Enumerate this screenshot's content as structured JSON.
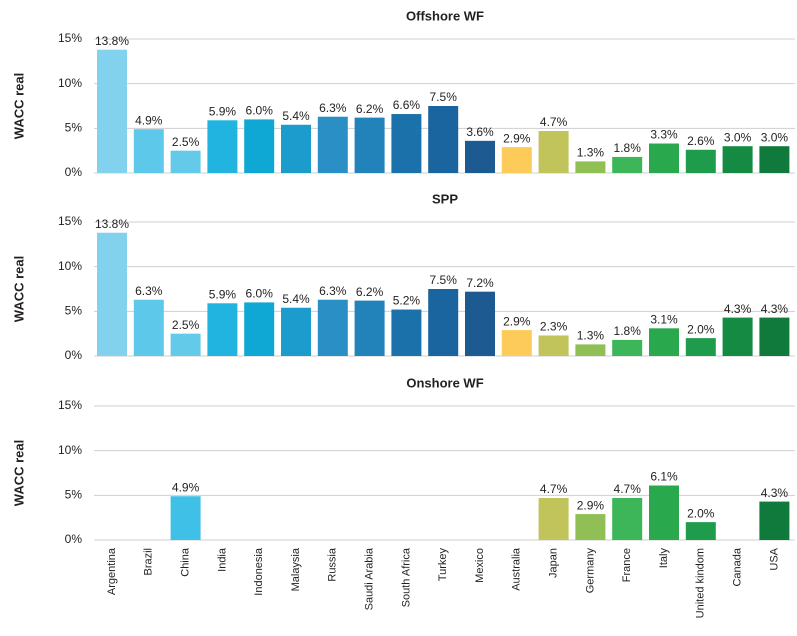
{
  "chart_data": [
    {
      "type": "bar",
      "title": "Offshore WF",
      "y_label": "WACC real",
      "values": [
        13.8,
        4.9,
        2.5,
        5.9,
        6.0,
        5.4,
        6.3,
        6.2,
        6.6,
        7.5,
        3.6,
        2.9,
        4.7,
        1.3,
        1.8,
        3.3,
        2.6,
        3.0,
        3.0
      ],
      "value_labels": [
        "13.8%",
        "4.9%",
        "2.5%",
        "5.9%",
        "6.0%",
        "5.4%",
        "6.3%",
        "6.2%",
        "6.6%",
        "7.5%",
        "3.6%",
        "2.9%",
        "4.7%",
        "1.3%",
        "1.8%",
        "3.3%",
        "2.6%",
        "3.0%",
        "3.0%"
      ],
      "colors": [
        "#82d2ee",
        "#5ec8ea",
        "#63cbe9",
        "#22b4e0",
        "#0fa8d4",
        "#1c9ccc",
        "#2a8fc4",
        "#2282ba",
        "#1b72aa",
        "#1a65a0",
        "#1c5a91",
        "#fdcb5a",
        "#c1c45a",
        "#8fbf55",
        "#3db659",
        "#2aa84d",
        "#1f9c4b",
        "#148a42",
        "#0f7a3c"
      ],
      "ylim": [
        0,
        15
      ],
      "yticks": [
        {
          "value": 0,
          "label": "0%"
        },
        {
          "value": 5,
          "label": "5%"
        },
        {
          "value": 10,
          "label": "10%"
        },
        {
          "value": 15,
          "label": "15%"
        }
      ],
      "grid": true
    },
    {
      "type": "bar",
      "title": "SPP",
      "y_label": "WACC real",
      "values": [
        13.8,
        6.3,
        2.5,
        5.9,
        6.0,
        5.4,
        6.3,
        6.2,
        5.2,
        7.5,
        7.2,
        2.9,
        2.3,
        1.3,
        1.8,
        3.1,
        2.0,
        4.3,
        4.3
      ],
      "value_labels": [
        "13.8%",
        "6.3%",
        "2.5%",
        "5.9%",
        "6.0%",
        "5.4%",
        "6.3%",
        "6.2%",
        "5.2%",
        "7.5%",
        "7.2%",
        "2.9%",
        "2.3%",
        "1.3%",
        "1.8%",
        "3.1%",
        "2.0%",
        "4.3%",
        "4.3%"
      ],
      "colors": [
        "#82d2ee",
        "#5ec8ea",
        "#63cbe9",
        "#22b4e0",
        "#0fa8d4",
        "#1c9ccc",
        "#2a8fc4",
        "#2282ba",
        "#1b72aa",
        "#1a65a0",
        "#1c5a91",
        "#fdcb5a",
        "#c1c45a",
        "#8fbf55",
        "#3db659",
        "#2aa84d",
        "#1f9c4b",
        "#148a42",
        "#0f7a3c"
      ],
      "ylim": [
        0,
        15
      ],
      "yticks": [
        {
          "value": 0,
          "label": "0%"
        },
        {
          "value": 5,
          "label": "5%"
        },
        {
          "value": 10,
          "label": "10%"
        },
        {
          "value": 15,
          "label": "15%"
        }
      ],
      "grid": true
    },
    {
      "type": "bar",
      "title": "Onshore WF",
      "y_label": "WACC real",
      "categories": [
        "Argentina",
        "Brazil",
        "China",
        "India",
        "Indonesia",
        "Malaysia",
        "Russia",
        "Saudi Arabia",
        "South Africa",
        "Turkey",
        "Mexico",
        "Australia",
        "Japan",
        "Germany",
        "France",
        "Italy",
        "United kindom",
        "Canada",
        "USA"
      ],
      "values": [
        null,
        null,
        4.9,
        null,
        null,
        null,
        null,
        null,
        null,
        null,
        null,
        null,
        4.7,
        2.9,
        4.7,
        6.1,
        2.0,
        null,
        4.3
      ],
      "value_labels": [
        null,
        null,
        "4.9%",
        null,
        null,
        null,
        null,
        null,
        null,
        null,
        null,
        null,
        "4.7%",
        "2.9%",
        "4.7%",
        "6.1%",
        "2.0%",
        null,
        "4.3%"
      ],
      "colors": [
        "#82d2ee",
        "#5ec8ea",
        "#3fc0e6",
        "#22b4e0",
        "#0fa8d4",
        "#1c9ccc",
        "#2a8fc4",
        "#2282ba",
        "#1b72aa",
        "#1a65a0",
        "#1c5a91",
        "#fdcb5a",
        "#c1c45a",
        "#8fbf55",
        "#3db659",
        "#2aa84d",
        "#1f9c4b",
        "#148a42",
        "#0f7a3c"
      ],
      "ylim": [
        0,
        15
      ],
      "yticks": [
        {
          "value": 0,
          "label": "0%"
        },
        {
          "value": 5,
          "label": "5%"
        },
        {
          "value": 10,
          "label": "10%"
        },
        {
          "value": 15,
          "label": "15%"
        }
      ],
      "grid": true
    }
  ]
}
